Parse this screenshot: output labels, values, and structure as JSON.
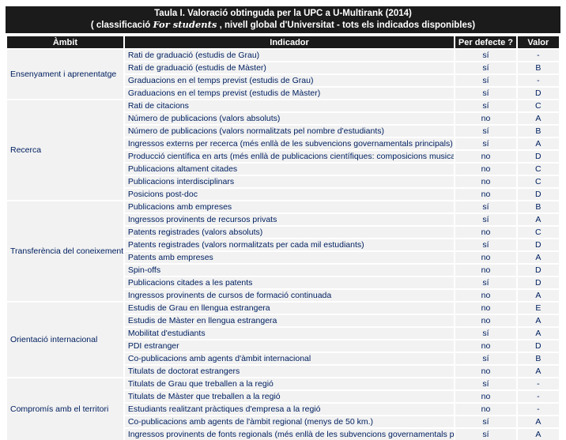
{
  "title": {
    "line1": "Taula I. Valoració obtinguda per la UPC a U-Multirank (2014)",
    "line2_prefix": "( classificació ",
    "line2_italic": "For students",
    "line2_suffix": " , nivell global d'Universitat - tots els indicados disponibles)"
  },
  "columns": {
    "ambit": "Àmbit",
    "indicador": "Indicador",
    "defecte": "Per defecte ?",
    "valor": "Valor"
  },
  "colors": {
    "header_bg": "#1b1b1b",
    "header_text": "#ffffff",
    "cell_bg": "#f2f2f2",
    "cell_text": "#002060",
    "page_bg": "#ffffff"
  },
  "groups": [
    {
      "ambit": "Ensenyament i aprenentatge",
      "rows": [
        {
          "indicador": "Rati de graduació (estudis de Grau)",
          "defecte": "sí",
          "valor": "-"
        },
        {
          "indicador": "Rati de graduació (estudis de Màster)",
          "defecte": "sí",
          "valor": "B"
        },
        {
          "indicador": "Graduacions en el temps previst (estudis de Grau)",
          "defecte": "sí",
          "valor": "-"
        },
        {
          "indicador": "Graduacions en el temps previst (estudis de Màster)",
          "defecte": "sí",
          "valor": "D"
        }
      ]
    },
    {
      "ambit": "Recerca",
      "rows": [
        {
          "indicador": "Rati de citacions",
          "defecte": "sí",
          "valor": "C"
        },
        {
          "indicador": "Número de publicacions (valors absoluts)",
          "defecte": "no",
          "valor": "A"
        },
        {
          "indicador": "Número de publicacions (valors normalitzats pel nombre d'estudiants)",
          "defecte": "sí",
          "valor": "B"
        },
        {
          "indicador": "Ingressos externs per recerca (més enllà de les subvencions governamentals principals)",
          "defecte": "sí",
          "valor": "A"
        },
        {
          "indicador": "Producció científica en arts (més enllà de publicacions científiques: composicions musicals...)",
          "defecte": "no",
          "valor": "D"
        },
        {
          "indicador": "Publicacions altament citades",
          "defecte": "no",
          "valor": "C"
        },
        {
          "indicador": "Publicacions interdisciplinars",
          "defecte": "no",
          "valor": "C"
        },
        {
          "indicador": "Posicions post-doc",
          "defecte": "no",
          "valor": "D"
        }
      ]
    },
    {
      "ambit": "Transferència del coneixement",
      "rows": [
        {
          "indicador": "Publicacions amb empreses",
          "defecte": "sí",
          "valor": "B"
        },
        {
          "indicador": "Ingressos provinents de recursos privats",
          "defecte": "sí",
          "valor": "A"
        },
        {
          "indicador": "Patents registrades (valors absoluts)",
          "defecte": "no",
          "valor": "C"
        },
        {
          "indicador": "Patents registrades (valors normalitzats per cada mil estudiants)",
          "defecte": "sí",
          "valor": "D"
        },
        {
          "indicador": "Patents amb empreses",
          "defecte": "no",
          "valor": "A"
        },
        {
          "indicador": "Spin-offs",
          "defecte": "no",
          "valor": "D"
        },
        {
          "indicador": "Publicacions citades a les patents",
          "defecte": "sí",
          "valor": "D"
        },
        {
          "indicador": "Ingressos provinents de cursos de formació continuada",
          "defecte": "no",
          "valor": "A"
        }
      ]
    },
    {
      "ambit": "Orientació internacional",
      "rows": [
        {
          "indicador": "Estudis de Grau en llengua estrangera",
          "defecte": "no",
          "valor": "E"
        },
        {
          "indicador": "Estudis de Màster en llengua estrangera",
          "defecte": "no",
          "valor": "A"
        },
        {
          "indicador": "Mobilitat d'estudiants",
          "defecte": "sí",
          "valor": "A"
        },
        {
          "indicador": "PDI estranger",
          "defecte": "no",
          "valor": "D"
        },
        {
          "indicador": "Co-publicacions amb agents d'àmbit internacional",
          "defecte": "sí",
          "valor": "B"
        },
        {
          "indicador": "Titulats de doctorat estrangers",
          "defecte": "no",
          "valor": "A"
        }
      ]
    },
    {
      "ambit": "Compromís amb el territori",
      "rows": [
        {
          "indicador": "Titulats de Grau que treballen a la regió",
          "defecte": "sí",
          "valor": "-"
        },
        {
          "indicador": "Titulats de Màster que treballen a la regió",
          "defecte": "no",
          "valor": "-"
        },
        {
          "indicador": "Estudiants realitzant pràctiques d'empresa a la regió",
          "defecte": "no",
          "valor": "-"
        },
        {
          "indicador": "Co-publicacions amb agents de l'àmbit regional (menys de 50 km.)",
          "defecte": "sí",
          "valor": "A"
        },
        {
          "indicador": "Ingressos provinents de fonts regionals (més enllà de les subvencions governamentals principals)",
          "defecte": "sí",
          "valor": "A"
        }
      ]
    }
  ]
}
